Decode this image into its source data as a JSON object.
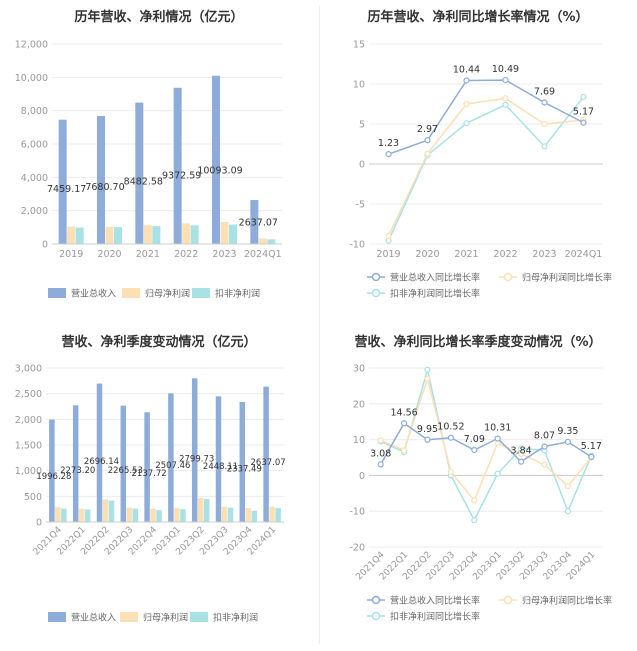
{
  "chart_data": [
    {
      "id": "annual-bars",
      "type": "bar",
      "title": "历年营收、净利情况（亿元）",
      "categories": [
        "2019",
        "2020",
        "2021",
        "2022",
        "2023",
        "2024Q1"
      ],
      "series": [
        {
          "name": "营业总收入",
          "color": "#8eacd9",
          "values": [
            7459.17,
            7680.7,
            8482.58,
            9372.59,
            10093.09,
            2637.07
          ]
        },
        {
          "name": "归母净利润",
          "color": "#fddfb4",
          "values": [
            1040,
            1030,
            1130,
            1240,
            1320,
            330
          ]
        },
        {
          "name": "扣非净利润",
          "color": "#a8e2e4",
          "values": [
            990,
            1010,
            1070,
            1120,
            1170,
            280
          ]
        }
      ],
      "data_labels": [
        "7459.17",
        "7680.70",
        "8482.58",
        "9372.59",
        "10093.09",
        "2637.07"
      ],
      "ylim": [
        0,
        12000
      ],
      "yticks": [
        "0",
        "2,000",
        "4,000",
        "6,000",
        "8,000",
        "10,000",
        "12,000"
      ],
      "legend": "bottom"
    },
    {
      "id": "annual-growth",
      "type": "line",
      "title": "历年营收、净利同比增长率情况（%）",
      "categories": [
        "2019",
        "2020",
        "2021",
        "2022",
        "2023",
        "2024Q1"
      ],
      "series": [
        {
          "name": "营业总收入同比增长率",
          "color": "#8eacd9",
          "values": [
            1.23,
            2.97,
            10.44,
            10.49,
            7.69,
            5.17
          ],
          "labels": [
            "1.23",
            "2.97",
            "10.44",
            "10.49",
            "7.69",
            "5.17"
          ]
        },
        {
          "name": "归母净利润同比增长率",
          "color": "#fddfb4",
          "values": [
            -9.0,
            1.3,
            7.5,
            8.2,
            5.0,
            5.5
          ]
        },
        {
          "name": "扣非净利润同比增长率",
          "color": "#a8e2e4",
          "values": [
            -9.6,
            1.1,
            5.1,
            7.4,
            2.2,
            8.4
          ]
        }
      ],
      "ylim": [
        -10,
        15
      ],
      "yticks": [
        "-10",
        "-5",
        "0",
        "5",
        "10",
        "15"
      ],
      "legend": "bottom"
    },
    {
      "id": "quarterly-bars",
      "type": "bar",
      "title": "营收、净利季度变动情况（亿元）",
      "categories": [
        "2021Q4",
        "2022Q1",
        "2022Q2",
        "2022Q3",
        "2022Q4",
        "2023Q1",
        "2023Q2",
        "2023Q3",
        "2023Q4",
        "2024Q1"
      ],
      "series": [
        {
          "name": "营业总收入",
          "color": "#8eacd9",
          "values": [
            1996.28,
            2273.2,
            2696.14,
            2265.53,
            2137.72,
            2507.46,
            2799.73,
            2448.11,
            2337.49,
            2637.07
          ]
        },
        {
          "name": "归母净利润",
          "color": "#fddfb4",
          "values": [
            290,
            260,
            440,
            280,
            260,
            270,
            470,
            300,
            270,
            300
          ]
        },
        {
          "name": "扣非净利润",
          "color": "#a8e2e4",
          "values": [
            260,
            240,
            420,
            260,
            230,
            250,
            450,
            280,
            220,
            270
          ]
        }
      ],
      "data_labels": [
        "1996.28",
        "2273.20",
        "2696.14",
        "2265.53",
        "2137.72",
        "2507.46",
        "2799.73",
        "2448.11",
        "2337.49",
        "2637.07"
      ],
      "ylim": [
        0,
        3000
      ],
      "yticks": [
        "0",
        "500",
        "1,000",
        "1,500",
        "2,000",
        "2,500",
        "3,000"
      ],
      "legend": "bottom"
    },
    {
      "id": "quarterly-growth",
      "type": "line",
      "title": "营收、净利同比增长率季度变动情况（%）",
      "categories": [
        "2021Q4",
        "2022Q1",
        "2022Q2",
        "2022Q3",
        "2022Q4",
        "2023Q1",
        "2023Q2",
        "2023Q3",
        "2023Q4",
        "2024Q1"
      ],
      "series": [
        {
          "name": "营业总收入同比增长率",
          "color": "#8eacd9",
          "values": [
            3.08,
            14.56,
            9.95,
            10.52,
            7.09,
            10.31,
            3.84,
            8.07,
            9.35,
            5.17
          ],
          "labels": [
            "3.08",
            "14.56",
            "9.95",
            "10.52",
            "7.09",
            "10.31",
            "3.84",
            "8.07",
            "9.35",
            "5.17"
          ]
        },
        {
          "name": "归母净利润同比增长率",
          "color": "#fddfb4",
          "values": [
            9.8,
            7.0,
            27.0,
            1.0,
            -7.0,
            9.0,
            6.0,
            3.0,
            -3.0,
            5.0
          ]
        },
        {
          "name": "扣非净利润同比增长率",
          "color": "#a8e2e4",
          "values": [
            9.5,
            6.5,
            29.5,
            0.0,
            -12.5,
            0.5,
            7.5,
            7.0,
            -10.0,
            5.5
          ]
        }
      ],
      "ylim": [
        -20,
        30
      ],
      "yticks": [
        "-20",
        "-10",
        "0",
        "10",
        "20",
        "30"
      ],
      "legend": "bottom"
    }
  ]
}
